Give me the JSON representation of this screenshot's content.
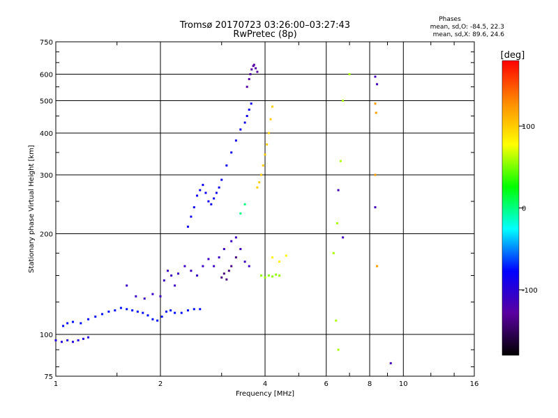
{
  "header": {
    "title_line1": "Tromsø 20170723 03:26:00–03:27:43",
    "title_line2": "RwPretec (8p)"
  },
  "stats": {
    "label": "Phases",
    "o_line": "mean, sd,O: -84.5, 22.3",
    "x_line": "mean, sd,X:  89.6, 24.6"
  },
  "chart_data": {
    "type": "scatter",
    "title": "Tromsø 20170723 03:26:00–03:27:43",
    "subtitle": "RwPretec (8p)",
    "xlabel": "Frequency [MHz]",
    "ylabel": "Stationary phase Virtual Height [km]",
    "xscale": "log",
    "yscale": "log",
    "xlim": [
      1,
      16
    ],
    "ylim": [
      75,
      750
    ],
    "xticks": [
      1,
      2,
      4,
      6,
      8,
      10,
      16
    ],
    "yticks": [
      75,
      100,
      200,
      300,
      400,
      500,
      600,
      750
    ],
    "grid": true,
    "colorbar": {
      "label": "[deg]",
      "range": [
        -180,
        180
      ],
      "ticks": [
        100,
        0,
        -100
      ],
      "colors": [
        "#ff0000",
        "#ff8c00",
        "#ffff00",
        "#00ff00",
        "#00ffff",
        "#0000ff",
        "#5a00a0",
        "#000000"
      ]
    },
    "series": [
      {
        "phase": -95,
        "points": [
          [
            1.0,
            96
          ],
          [
            1.04,
            95
          ],
          [
            1.08,
            96
          ],
          [
            1.12,
            95
          ],
          [
            1.16,
            96
          ],
          [
            1.2,
            97
          ],
          [
            1.24,
            98
          ]
        ]
      },
      {
        "phase": -75,
        "points": [
          [
            1.05,
            106
          ],
          [
            1.08,
            108
          ],
          [
            1.12,
            109
          ],
          [
            1.18,
            108
          ],
          [
            1.24,
            111
          ],
          [
            1.3,
            113
          ],
          [
            1.36,
            115
          ],
          [
            1.42,
            117
          ],
          [
            1.48,
            118
          ],
          [
            1.54,
            120
          ],
          [
            1.6,
            119
          ],
          [
            1.66,
            118
          ],
          [
            1.72,
            117
          ],
          [
            1.78,
            116
          ],
          [
            1.84,
            114
          ],
          [
            1.9,
            111
          ],
          [
            1.96,
            110
          ],
          [
            2.02,
            113
          ],
          [
            2.08,
            117
          ],
          [
            2.14,
            118
          ],
          [
            2.2,
            116
          ],
          [
            2.3,
            116
          ],
          [
            2.4,
            118
          ],
          [
            2.5,
            119
          ],
          [
            2.6,
            119
          ]
        ]
      },
      {
        "phase": -110,
        "points": [
          [
            1.6,
            140
          ],
          [
            1.7,
            130
          ],
          [
            1.8,
            128
          ],
          [
            1.9,
            132
          ],
          [
            2.0,
            130
          ],
          [
            2.05,
            145
          ],
          [
            2.1,
            155
          ],
          [
            2.15,
            150
          ],
          [
            2.2,
            140
          ],
          [
            2.25,
            152
          ],
          [
            2.35,
            160
          ],
          [
            2.45,
            155
          ],
          [
            2.55,
            150
          ],
          [
            2.65,
            160
          ],
          [
            2.75,
            168
          ],
          [
            2.85,
            160
          ],
          [
            2.95,
            170
          ],
          [
            3.05,
            180
          ],
          [
            3.2,
            190
          ],
          [
            3.3,
            195
          ],
          [
            3.4,
            180
          ],
          [
            3.5,
            165
          ],
          [
            3.6,
            160
          ]
        ]
      },
      {
        "phase": -140,
        "points": [
          [
            3.0,
            148
          ],
          [
            3.05,
            152
          ],
          [
            3.1,
            146
          ],
          [
            3.15,
            155
          ],
          [
            3.2,
            160
          ],
          [
            3.3,
            170
          ]
        ]
      },
      {
        "phase": -85,
        "points": [
          [
            2.4,
            210
          ],
          [
            2.45,
            225
          ],
          [
            2.5,
            240
          ],
          [
            2.55,
            260
          ],
          [
            2.6,
            270
          ],
          [
            2.65,
            280
          ],
          [
            2.7,
            265
          ],
          [
            2.75,
            250
          ],
          [
            2.8,
            245
          ],
          [
            2.85,
            255
          ],
          [
            2.9,
            265
          ],
          [
            2.95,
            275
          ],
          [
            3.0,
            290
          ],
          [
            3.1,
            320
          ],
          [
            3.2,
            350
          ],
          [
            3.3,
            380
          ],
          [
            3.4,
            410
          ],
          [
            3.5,
            430
          ],
          [
            3.55,
            450
          ],
          [
            3.6,
            470
          ],
          [
            3.65,
            490
          ]
        ]
      },
      {
        "phase": -125,
        "points": [
          [
            3.55,
            550
          ],
          [
            3.6,
            580
          ],
          [
            3.63,
            600
          ],
          [
            3.66,
            620
          ],
          [
            3.7,
            635
          ],
          [
            3.72,
            640
          ],
          [
            3.76,
            625
          ],
          [
            3.8,
            610
          ]
        ]
      },
      {
        "phase": 100,
        "points": [
          [
            3.8,
            275
          ],
          [
            3.85,
            285
          ],
          [
            3.9,
            300
          ],
          [
            3.95,
            320
          ],
          [
            4.0,
            345
          ],
          [
            4.05,
            370
          ],
          [
            4.1,
            400
          ],
          [
            4.15,
            440
          ],
          [
            4.2,
            480
          ]
        ]
      },
      {
        "phase": 55,
        "points": [
          [
            3.9,
            150
          ],
          [
            4.0,
            148
          ],
          [
            4.1,
            150
          ],
          [
            4.2,
            149
          ],
          [
            4.3,
            151
          ],
          [
            4.4,
            150
          ]
        ]
      },
      {
        "phase": 80,
        "points": [
          [
            4.2,
            170
          ],
          [
            4.4,
            165
          ],
          [
            4.6,
            172
          ]
        ]
      },
      {
        "phase": 60,
        "points": [
          [
            6.3,
            175
          ],
          [
            6.4,
            110
          ],
          [
            6.45,
            215
          ],
          [
            6.5,
            90
          ],
          [
            6.6,
            330
          ],
          [
            6.7,
            500
          ],
          [
            7.0,
            600
          ]
        ]
      },
      {
        "phase": -115,
        "points": [
          [
            6.5,
            270
          ],
          [
            6.7,
            195
          ],
          [
            8.3,
            590
          ],
          [
            8.4,
            560
          ],
          [
            8.3,
            240
          ],
          [
            9.2,
            82
          ]
        ]
      },
      {
        "phase": 120,
        "points": [
          [
            8.3,
            490
          ],
          [
            8.35,
            460
          ],
          [
            8.3,
            300
          ],
          [
            8.4,
            160
          ]
        ]
      },
      {
        "phase": 0,
        "points": [
          [
            3.4,
            230
          ],
          [
            3.5,
            245
          ]
        ]
      }
    ]
  }
}
